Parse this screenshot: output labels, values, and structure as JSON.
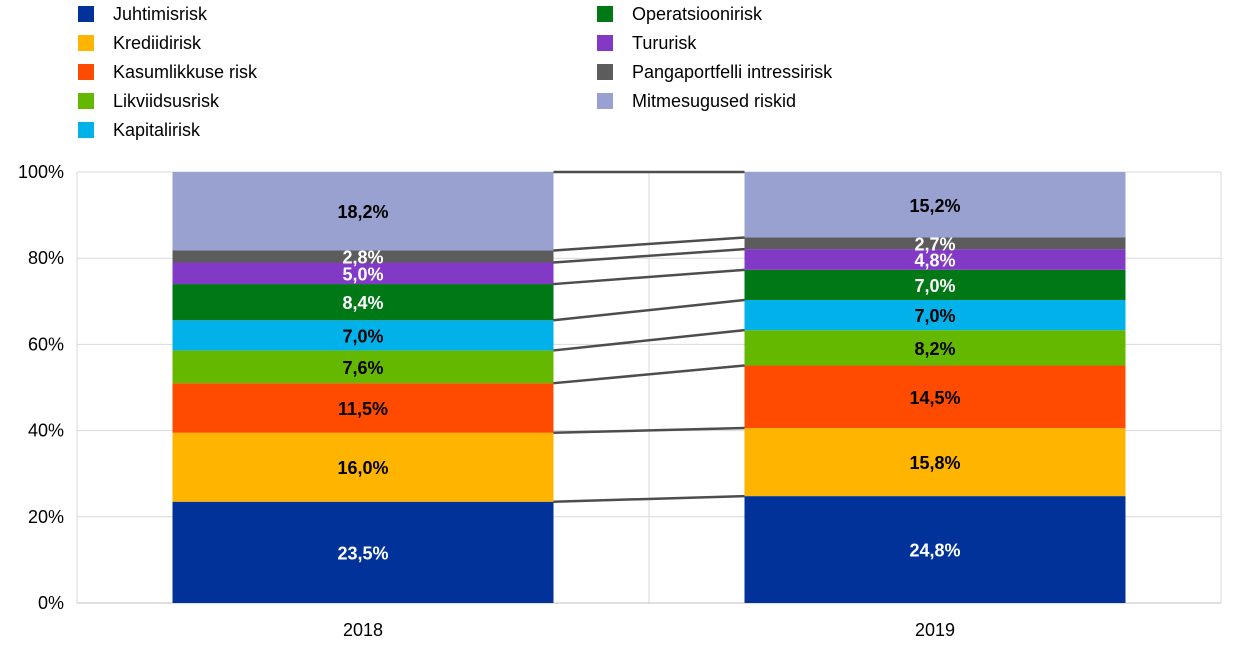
{
  "chart_data": {
    "type": "bar",
    "stacked": true,
    "percent": true,
    "title": "",
    "xlabel": "",
    "ylabel": "",
    "ylim": [
      0,
      100
    ],
    "yticks": [
      "0%",
      "20%",
      "40%",
      "60%",
      "80%",
      "100%"
    ],
    "grid": true,
    "legend_position": "top",
    "categories": [
      "2018",
      "2019"
    ],
    "series": [
      {
        "name": "Juhtimisrisk",
        "color": "#003299",
        "label_color": "#ffffff",
        "values": [
          23.5,
          24.8
        ],
        "labels": [
          "23,5%",
          "24,8%"
        ]
      },
      {
        "name": "Krediidirisk",
        "color": "#FFB400",
        "label_color": "#000000",
        "values": [
          16.0,
          15.8
        ],
        "labels": [
          "16,0%",
          "15,8%"
        ]
      },
      {
        "name": "Kasumlikkuse risk",
        "color": "#FF4B00",
        "label_color": "#000000",
        "values": [
          11.5,
          14.5
        ],
        "labels": [
          "11,5%",
          "14,5%"
        ]
      },
      {
        "name": "Likviidsusrisk",
        "color": "#65B800",
        "label_color": "#000000",
        "values": [
          7.6,
          8.2
        ],
        "labels": [
          "7,6%",
          "8,2%"
        ]
      },
      {
        "name": "Kapitalirisk",
        "color": "#00B1EA",
        "label_color": "#000000",
        "values": [
          7.0,
          7.0
        ],
        "labels": [
          "7,0%",
          "7,0%"
        ]
      },
      {
        "name": "Operatsioonirisk",
        "color": "#007816",
        "label_color": "#ffffff",
        "values": [
          8.4,
          7.0
        ],
        "labels": [
          "8,4%",
          "7,0%"
        ]
      },
      {
        "name": "Tururisk",
        "color": "#8139C6",
        "label_color": "#ffffff",
        "values": [
          5.0,
          4.8
        ],
        "labels": [
          "5,0%",
          "4,8%"
        ]
      },
      {
        "name": "Pangaportfelli intressirisk",
        "color": "#5C5C5C",
        "label_color": "#ffffff",
        "values": [
          2.8,
          2.7
        ],
        "labels": [
          "2,8%",
          "2,7%"
        ]
      },
      {
        "name": "Mitmesugused riskid",
        "color": "#98A1D0",
        "label_color": "#000000",
        "values": [
          18.2,
          15.2
        ],
        "labels": [
          "18,2%",
          "15,2%"
        ]
      }
    ],
    "legend_order": [
      [
        "Juhtimisrisk",
        "Krediidirisk",
        "Kasumlikkuse risk",
        "Likviidsusrisk",
        "Kapitalirisk"
      ],
      [
        "Operatsioonirisk",
        "Tururisk",
        "Pangaportfelli intressirisk",
        "Mitmesugused riskid"
      ]
    ]
  }
}
